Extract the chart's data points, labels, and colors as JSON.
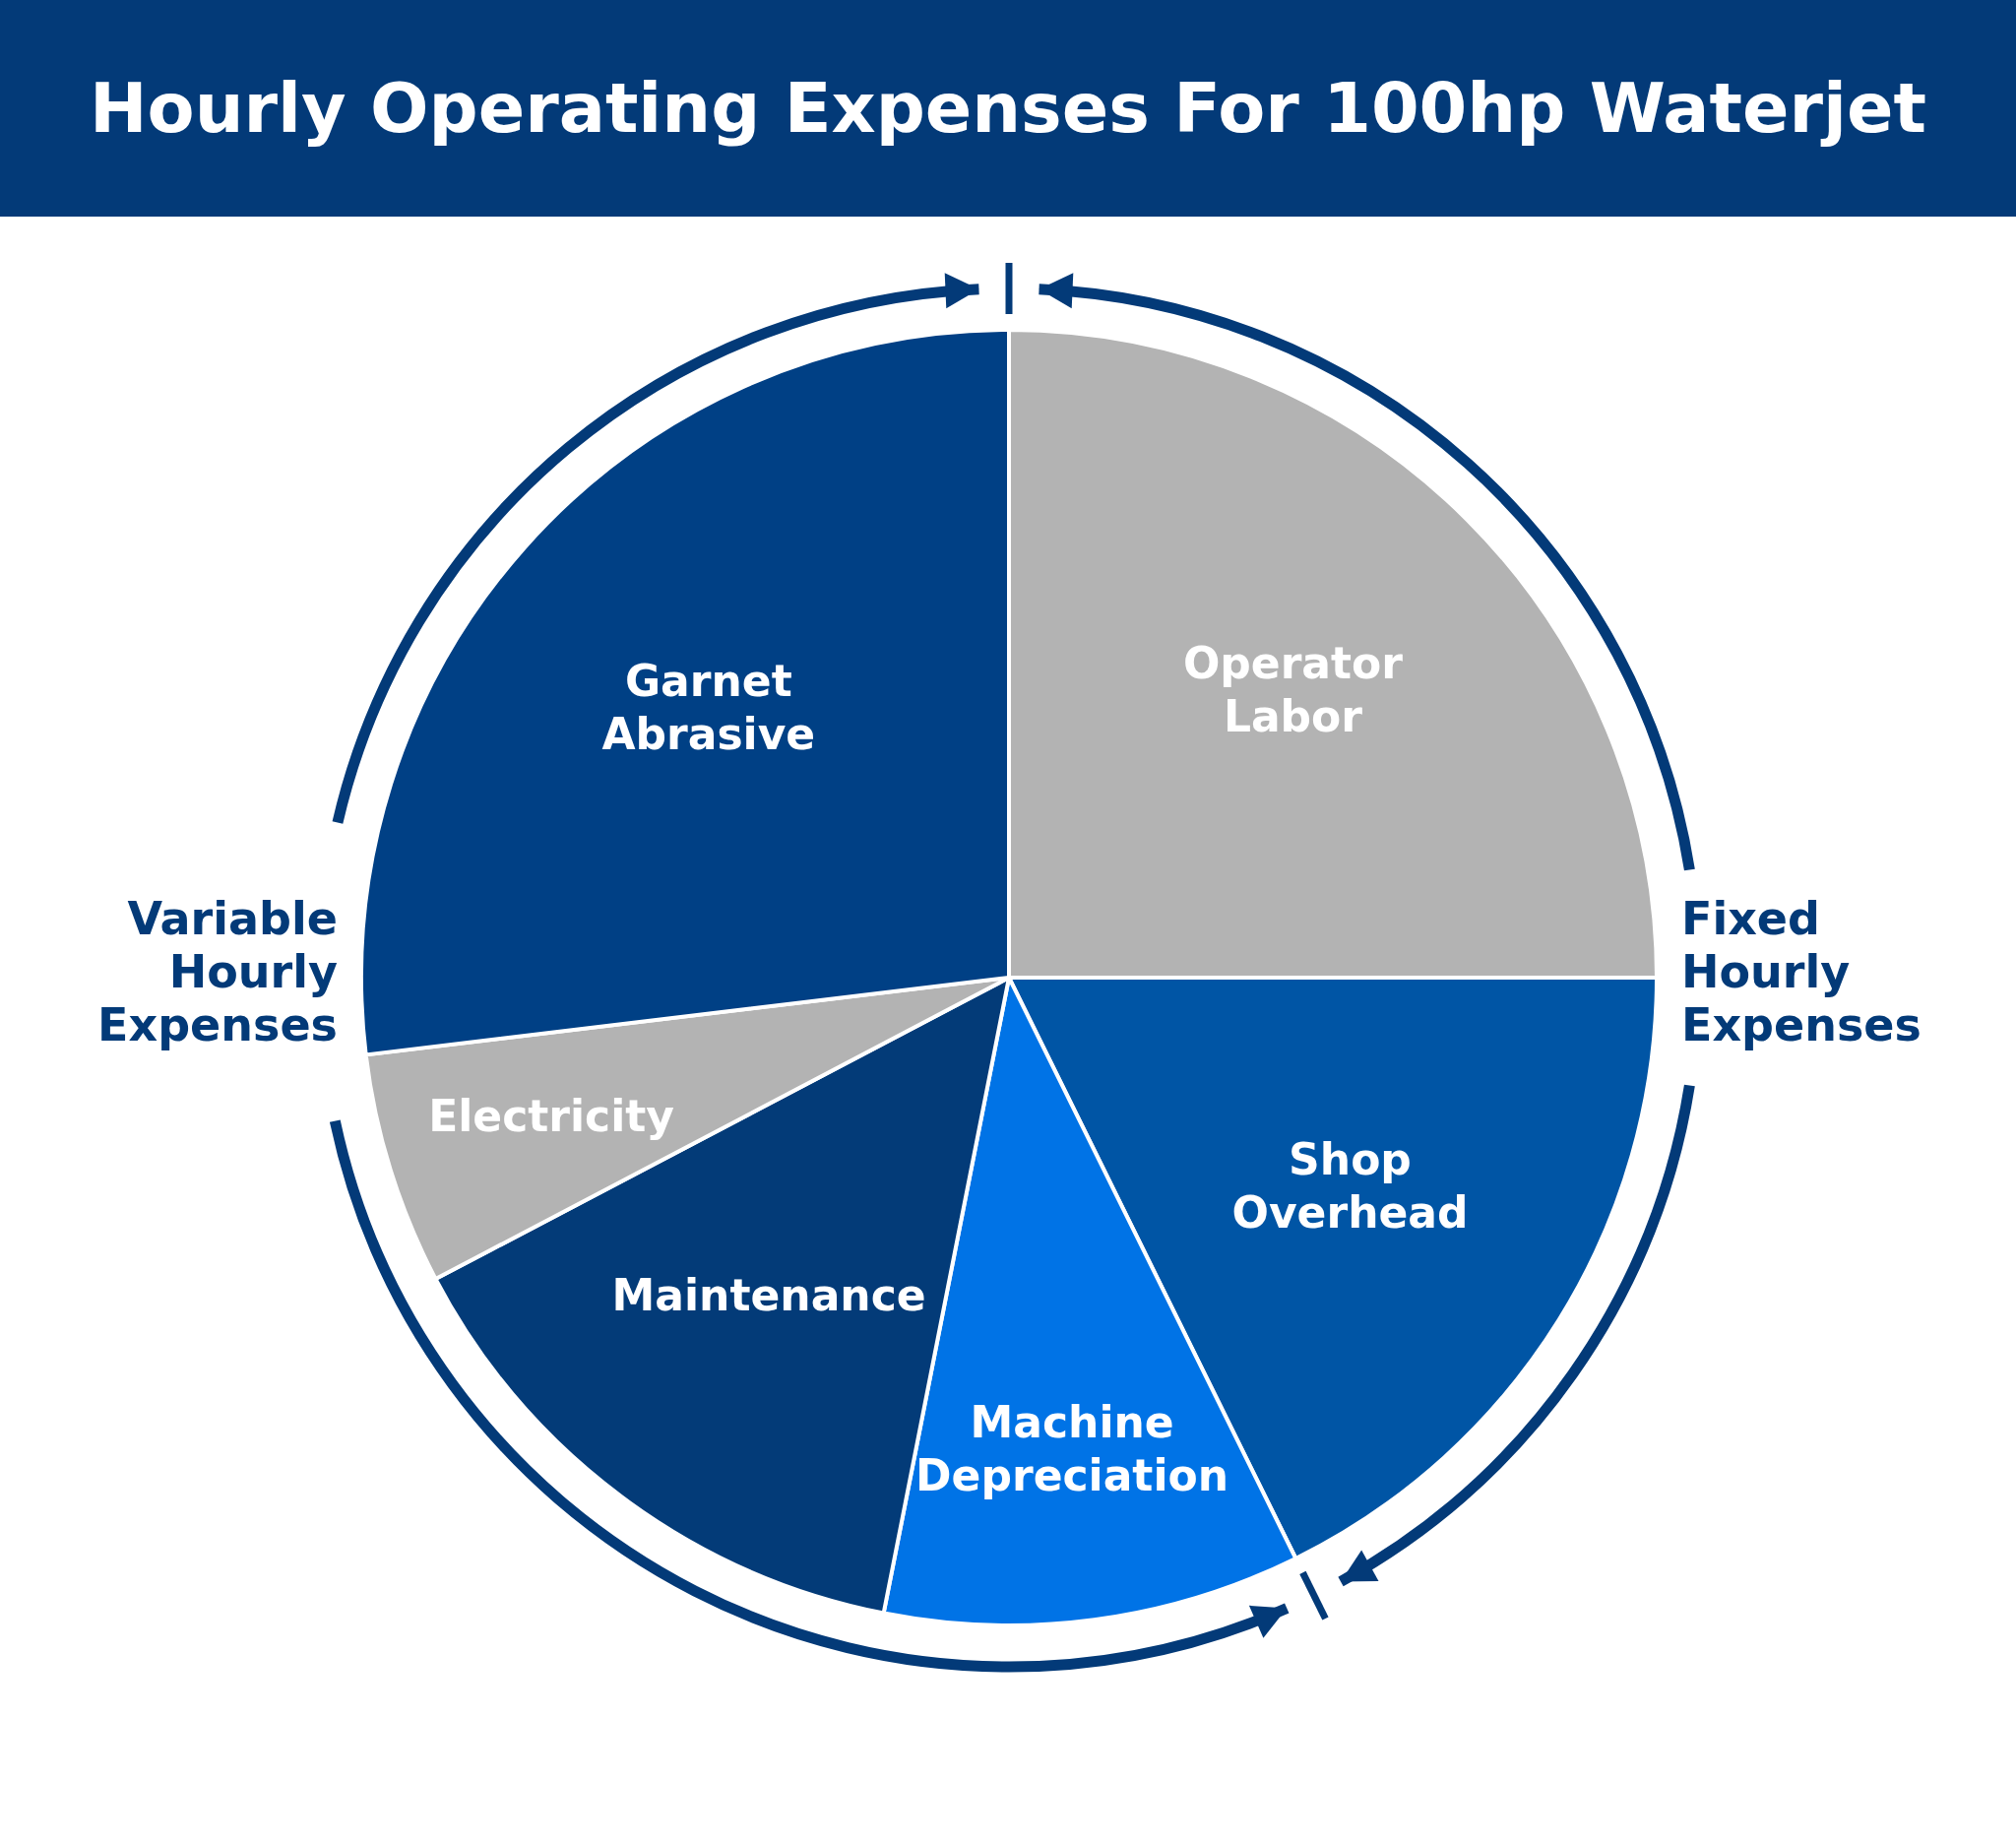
{
  "chart_data": {
    "type": "pie",
    "title": "Hourly Operating Expenses For 100hp Waterjet",
    "categories": [
      "Operator Labor",
      "Shop Overhead",
      "Machine Depreciation",
      "Maintenance",
      "Electricity",
      "Garnet Abrasive"
    ],
    "values": [
      25,
      17.7,
      10.4,
      14.2,
      5.8,
      26.9
    ],
    "colors": [
      "#b3b3b3",
      "#0055a5",
      "#0073e6",
      "#033b78",
      "#b3b3b3",
      "#004085"
    ],
    "annotations": [
      "Fixed Hourly Expenses",
      "Variable Hourly Expenses"
    ]
  }
}
